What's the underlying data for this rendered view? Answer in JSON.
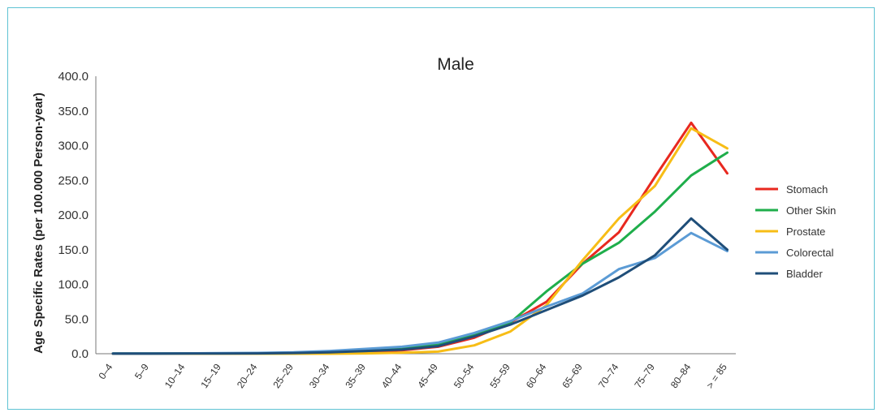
{
  "chart_data": {
    "type": "line",
    "title": "Male",
    "xlabel": "",
    "ylabel": "Age Specific Rates (per 100.000 Person-year)",
    "ylim": [
      0,
      400
    ],
    "yticks": [
      "0.0",
      "50.0",
      "100.0",
      "150.0",
      "200.0",
      "250.0",
      "300.0",
      "350.0",
      "400.0"
    ],
    "grid": false,
    "legend_position": "right",
    "categories": [
      "0–4",
      "5–9",
      "10–14",
      "15–19",
      "20–24",
      "25–29",
      "30–34",
      "35–39",
      "40–44",
      "45–49",
      "50–54",
      "55–59",
      "60–64",
      "65–69",
      "70–74",
      "75–79",
      "80–84",
      "> = 85"
    ],
    "series": [
      {
        "name": "Stomach",
        "color": "#e8281f",
        "values": [
          0.1,
          0.1,
          0.1,
          0.2,
          0.4,
          0.8,
          1.5,
          3,
          5,
          10,
          23,
          45,
          75,
          130,
          175,
          255,
          333,
          260
        ]
      },
      {
        "name": "Other Skin",
        "color": "#1fae4b",
        "values": [
          0.2,
          0.2,
          0.3,
          0.5,
          0.7,
          1,
          2,
          4,
          7,
          13,
          27,
          45,
          90,
          130,
          160,
          205,
          257,
          290
        ]
      },
      {
        "name": "Prostate",
        "color": "#f7bd16",
        "values": [
          0,
          0,
          0,
          0,
          0,
          0,
          0,
          0.5,
          1.5,
          3,
          12,
          32,
          70,
          135,
          195,
          242,
          325,
          296
        ]
      },
      {
        "name": "Colorectal",
        "color": "#5b9bd5",
        "values": [
          0.2,
          0.3,
          0.5,
          0.8,
          1.2,
          2,
          4,
          7,
          10,
          16,
          30,
          47,
          68,
          87,
          122,
          138,
          174,
          148
        ]
      },
      {
        "name": "Bladder",
        "color": "#1f4e79",
        "values": [
          0.1,
          0.1,
          0.2,
          0.3,
          0.5,
          1,
          2,
          4,
          6,
          11,
          25,
          42,
          63,
          84,
          110,
          142,
          195,
          150
        ]
      }
    ]
  }
}
